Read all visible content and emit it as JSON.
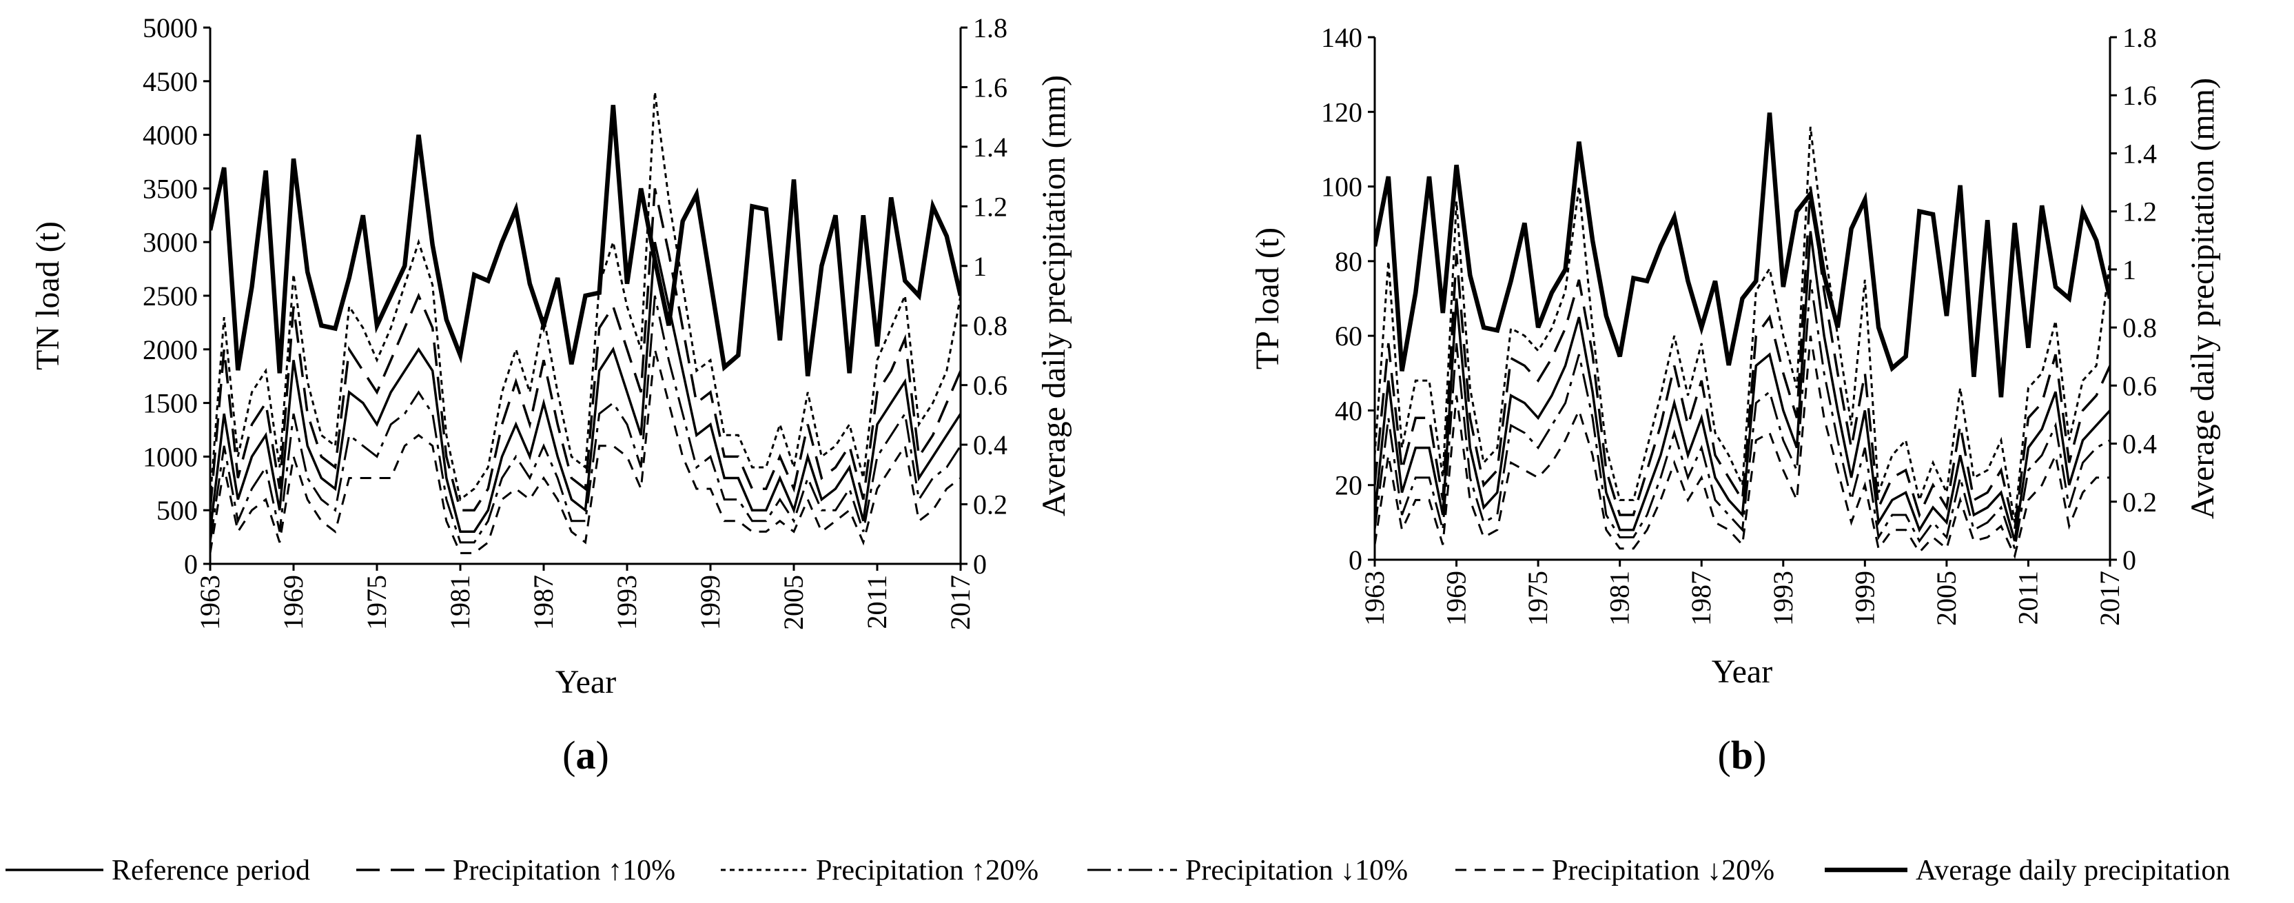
{
  "legend": [
    {
      "key": "ref",
      "label": "Reference period"
    },
    {
      "key": "p10",
      "label": "Precipitation ↑10%"
    },
    {
      "key": "p20",
      "label": "Precipitation ↑20%"
    },
    {
      "key": "m10",
      "label": "Precipitation ↓10%"
    },
    {
      "key": "m20",
      "label": "Precipitation ↓20%"
    },
    {
      "key": "rain",
      "label": "Average daily precipitation"
    }
  ],
  "chart_data": [
    {
      "id": "a",
      "type": "line",
      "panel_label": "(a)",
      "xlabel": "Year",
      "ylabel": "TN load (t)",
      "y2label": "Average daily precipitation (mm)",
      "ylim": [
        0,
        5000
      ],
      "yticks": [
        0,
        500,
        1000,
        1500,
        2000,
        2500,
        3000,
        3500,
        4000,
        4500,
        5000
      ],
      "y2lim": [
        0,
        1.8
      ],
      "y2ticks": [
        "0",
        "0.2",
        "0.4",
        "0.6",
        "0.8",
        "1",
        "1.2",
        "1.4",
        "1.6",
        "1.8"
      ],
      "xticks": [
        "1963",
        "1969",
        "1975",
        "1981",
        "1987",
        "1993",
        "1999",
        "2005",
        "2011",
        "2017"
      ],
      "x": [
        1963,
        1964,
        1965,
        1966,
        1967,
        1968,
        1969,
        1970,
        1971,
        1972,
        1973,
        1974,
        1975,
        1976,
        1977,
        1978,
        1979,
        1980,
        1981,
        1982,
        1983,
        1984,
        1985,
        1986,
        1987,
        1988,
        1989,
        1990,
        1991,
        1992,
        1993,
        1994,
        1995,
        1996,
        1997,
        1998,
        1999,
        2000,
        2001,
        2002,
        2003,
        2004,
        2005,
        2006,
        2007,
        2008,
        2009,
        2010,
        2011,
        2012,
        2013,
        2014,
        2015,
        2016,
        2017
      ],
      "series": [
        {
          "key": "ref",
          "name": "Reference period",
          "axis": "left",
          "values": [
            300,
            1400,
            600,
            1000,
            1200,
            500,
            1900,
            1100,
            800,
            700,
            1600,
            1500,
            1300,
            1600,
            1800,
            2000,
            1800,
            800,
            300,
            300,
            500,
            1000,
            1300,
            1000,
            1500,
            1000,
            600,
            500,
            1800,
            2000,
            1600,
            1200,
            3000,
            2400,
            1800,
            1200,
            1300,
            800,
            800,
            500,
            500,
            800,
            500,
            1000,
            600,
            700,
            900,
            400,
            1300,
            1500,
            1700,
            800,
            1000,
            1200,
            1400
          ]
        },
        {
          "key": "p10",
          "name": "Precipitation ↑10%",
          "axis": "left",
          "values": [
            500,
            2000,
            800,
            1300,
            1500,
            700,
            2400,
            1400,
            1000,
            900,
            2000,
            1800,
            1600,
            1900,
            2200,
            2500,
            2200,
            1000,
            500,
            500,
            700,
            1300,
            1700,
            1300,
            1900,
            1300,
            800,
            700,
            2200,
            2400,
            2000,
            1600,
            3500,
            2900,
            2200,
            1500,
            1600,
            1000,
            1000,
            700,
            700,
            1000,
            700,
            1300,
            800,
            900,
            1100,
            600,
            1600,
            1800,
            2100,
            1000,
            1200,
            1500,
            1800
          ]
        },
        {
          "key": "p20",
          "name": "Precipitation ↑20%",
          "axis": "left",
          "values": [
            600,
            2300,
            1000,
            1600,
            1800,
            900,
            2700,
            1700,
            1200,
            1100,
            2400,
            2200,
            1900,
            2200,
            2600,
            3000,
            2600,
            1200,
            600,
            700,
            900,
            1600,
            2000,
            1600,
            2300,
            1600,
            1000,
            900,
            2600,
            3000,
            2400,
            2000,
            4400,
            3400,
            2600,
            1800,
            1900,
            1200,
            1200,
            900,
            900,
            1300,
            900,
            1600,
            1000,
            1100,
            1300,
            800,
            1900,
            2200,
            2500,
            1300,
            1500,
            1800,
            2500
          ]
        },
        {
          "key": "m10",
          "name": "Precipitation ↓10%",
          "axis": "left",
          "values": [
            200,
            1100,
            400,
            700,
            900,
            300,
            1400,
            800,
            600,
            500,
            1200,
            1100,
            1000,
            1300,
            1400,
            1600,
            1400,
            600,
            200,
            200,
            400,
            800,
            1000,
            800,
            1100,
            800,
            400,
            400,
            1400,
            1500,
            1300,
            900,
            2500,
            1900,
            1400,
            900,
            1000,
            600,
            600,
            400,
            400,
            600,
            400,
            800,
            500,
            500,
            700,
            300,
            1000,
            1200,
            1400,
            600,
            800,
            900,
            1100
          ]
        },
        {
          "key": "m20",
          "name": "Precipitation ↓20%",
          "axis": "left",
          "values": [
            100,
            900,
            300,
            500,
            600,
            200,
            1000,
            600,
            400,
            300,
            800,
            800,
            800,
            800,
            1100,
            1200,
            1100,
            400,
            100,
            100,
            200,
            600,
            700,
            600,
            800,
            600,
            300,
            200,
            1100,
            1100,
            1000,
            700,
            2000,
            1500,
            1000,
            700,
            700,
            400,
            400,
            300,
            300,
            400,
            300,
            600,
            300,
            400,
            500,
            200,
            700,
            900,
            1100,
            400,
            500,
            700,
            800
          ]
        },
        {
          "key": "rain",
          "name": "Average daily precipitation",
          "axis": "right",
          "values": [
            1.12,
            1.33,
            0.65,
            0.93,
            1.32,
            0.64,
            1.36,
            0.98,
            0.8,
            0.79,
            0.96,
            1.17,
            0.8,
            0.9,
            1.0,
            1.44,
            1.07,
            0.82,
            0.7,
            0.97,
            0.95,
            1.08,
            1.19,
            0.94,
            0.8,
            0.96,
            0.67,
            0.9,
            0.91,
            1.54,
            0.94,
            1.26,
            1.02,
            0.8,
            1.15,
            1.24,
            0.95,
            0.66,
            0.7,
            1.2,
            1.19,
            0.75,
            1.29,
            0.63,
            1.0,
            1.17,
            0.64,
            1.17,
            0.73,
            1.23,
            0.95,
            0.9,
            1.2,
            1.1,
            0.9
          ]
        }
      ]
    },
    {
      "id": "b",
      "type": "line",
      "panel_label": "(b)",
      "xlabel": "Year",
      "ylabel": "TP load (t)",
      "y2label": "Average daily precipitation (mm)",
      "ylim": [
        0,
        140
      ],
      "yticks": [
        0,
        20,
        40,
        60,
        80,
        100,
        120,
        140
      ],
      "y2lim": [
        0,
        1.8
      ],
      "y2ticks": [
        "0",
        "0.2",
        "0.4",
        "0.6",
        "0.8",
        "1",
        "1.2",
        "1.4",
        "1.6",
        "1.8"
      ],
      "xticks": [
        "1963",
        "1969",
        "1975",
        "1981",
        "1987",
        "1993",
        "1999",
        "2005",
        "2011",
        "2017"
      ],
      "x": [
        1963,
        1964,
        1965,
        1966,
        1967,
        1968,
        1969,
        1970,
        1971,
        1972,
        1973,
        1974,
        1975,
        1976,
        1977,
        1978,
        1979,
        1980,
        1981,
        1982,
        1983,
        1984,
        1985,
        1986,
        1987,
        1988,
        1989,
        1990,
        1991,
        1992,
        1993,
        1994,
        1995,
        1996,
        1997,
        1998,
        1999,
        2000,
        2001,
        2002,
        2003,
        2004,
        2005,
        2006,
        2007,
        2008,
        2009,
        2010,
        2011,
        2012,
        2013,
        2014,
        2015,
        2016,
        2017
      ],
      "series": [
        {
          "key": "ref",
          "name": "Reference period",
          "axis": "left",
          "values": [
            12,
            48,
            18,
            30,
            30,
            12,
            70,
            30,
            14,
            18,
            44,
            42,
            38,
            44,
            52,
            65,
            45,
            18,
            8,
            8,
            18,
            28,
            42,
            28,
            38,
            22,
            16,
            12,
            52,
            55,
            40,
            30,
            88,
            60,
            40,
            22,
            40,
            10,
            16,
            18,
            8,
            14,
            10,
            28,
            12,
            14,
            18,
            5,
            30,
            35,
            45,
            20,
            32,
            36,
            40
          ]
        },
        {
          "key": "p10",
          "name": "Precipitation ↑10%",
          "axis": "left",
          "values": [
            20,
            58,
            24,
            38,
            38,
            16,
            82,
            38,
            20,
            24,
            54,
            52,
            48,
            54,
            62,
            75,
            55,
            24,
            12,
            12,
            24,
            36,
            52,
            36,
            48,
            28,
            22,
            16,
            60,
            65,
            50,
            38,
            100,
            72,
            50,
            30,
            50,
            14,
            22,
            24,
            12,
            20,
            14,
            36,
            16,
            18,
            24,
            8,
            38,
            42,
            55,
            26,
            40,
            44,
            52
          ]
        },
        {
          "key": "p20",
          "name": "Precipitation ↑20%",
          "axis": "left",
          "values": [
            28,
            80,
            30,
            48,
            48,
            22,
            96,
            46,
            26,
            30,
            62,
            60,
            56,
            62,
            72,
            100,
            62,
            30,
            16,
            16,
            30,
            44,
            60,
            44,
            58,
            34,
            28,
            20,
            72,
            78,
            60,
            46,
            116,
            84,
            60,
            36,
            75,
            18,
            28,
            32,
            16,
            26,
            18,
            46,
            22,
            24,
            32,
            10,
            46,
            50,
            64,
            32,
            48,
            52,
            80
          ]
        },
        {
          "key": "m10",
          "name": "Precipitation ↓10%",
          "axis": "left",
          "values": [
            8,
            38,
            12,
            22,
            22,
            8,
            58,
            22,
            10,
            12,
            36,
            34,
            30,
            36,
            42,
            55,
            38,
            12,
            6,
            6,
            12,
            22,
            34,
            22,
            30,
            16,
            12,
            8,
            42,
            45,
            32,
            24,
            75,
            50,
            32,
            16,
            30,
            6,
            12,
            12,
            5,
            10,
            6,
            22,
            8,
            10,
            14,
            3,
            24,
            28,
            36,
            14,
            26,
            30,
            32
          ]
        },
        {
          "key": "m20",
          "name": "Precipitation ↓20%",
          "axis": "left",
          "values": [
            4,
            28,
            8,
            16,
            16,
            4,
            44,
            16,
            6,
            8,
            26,
            24,
            22,
            26,
            32,
            40,
            28,
            8,
            3,
            3,
            8,
            16,
            26,
            16,
            22,
            10,
            8,
            4,
            32,
            34,
            24,
            16,
            60,
            38,
            24,
            10,
            20,
            3,
            8,
            8,
            2,
            6,
            3,
            16,
            5,
            6,
            9,
            1,
            16,
            20,
            28,
            9,
            18,
            22,
            22
          ]
        },
        {
          "key": "rain",
          "name": "Average daily precipitation",
          "axis": "right",
          "values": [
            1.08,
            1.32,
            0.65,
            0.92,
            1.32,
            0.85,
            1.36,
            0.98,
            0.8,
            0.79,
            0.96,
            1.16,
            0.8,
            0.92,
            1.0,
            1.44,
            1.1,
            0.84,
            0.7,
            0.97,
            0.96,
            1.08,
            1.18,
            0.96,
            0.8,
            0.96,
            0.67,
            0.9,
            0.96,
            1.54,
            0.94,
            1.2,
            1.26,
            0.98,
            0.8,
            1.14,
            1.24,
            0.8,
            0.66,
            0.7,
            1.2,
            1.19,
            0.84,
            1.29,
            0.63,
            1.17,
            0.56,
            1.16,
            0.73,
            1.22,
            0.94,
            0.9,
            1.2,
            1.1,
            0.9
          ]
        }
      ]
    }
  ]
}
